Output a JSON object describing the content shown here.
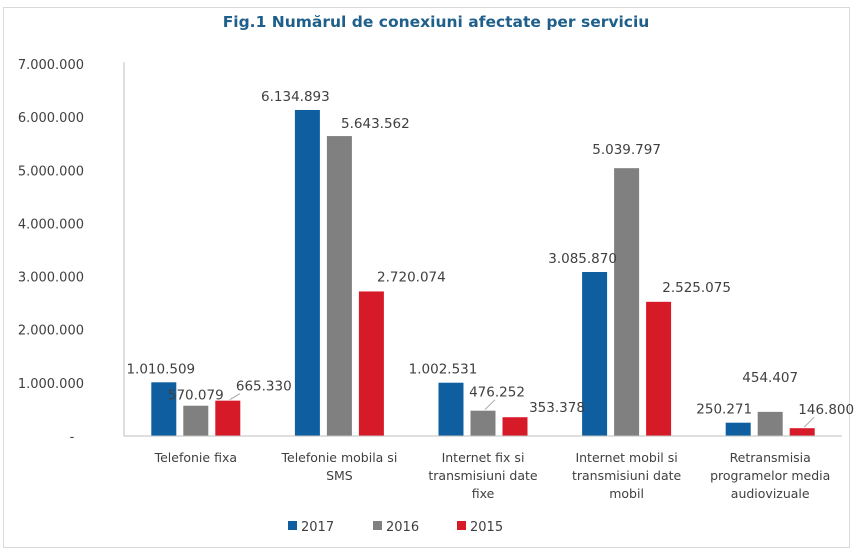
{
  "chart_data": {
    "type": "bar",
    "title": "Fig.1 Numărul de conexiuni afectate per serviciu",
    "xlabel": "",
    "ylabel": "",
    "ylim": [
      0,
      7000000
    ],
    "yticks": [
      0,
      1000000,
      2000000,
      3000000,
      4000000,
      5000000,
      6000000,
      7000000
    ],
    "ytick_labels": [
      "-",
      "1.000.000",
      "2.000.000",
      "3.000.000",
      "4.000.000",
      "5.000.000",
      "6.000.000",
      "7.000.000"
    ],
    "grid": false,
    "legend_position": "bottom",
    "categories": [
      [
        "Telefonie fixa"
      ],
      [
        "Telefonie mobila si",
        "SMS"
      ],
      [
        "Internet fix si",
        "transmisiuni date",
        "fixe"
      ],
      [
        "Internet mobil si",
        "transmisiuni date",
        "mobil"
      ],
      [
        "Retransmisia",
        "programelor media",
        "audiovizuale"
      ]
    ],
    "series": [
      {
        "name": "2017",
        "color": "#0f5fa0",
        "values": [
          1010509,
          6134893,
          1002531,
          3085870,
          250271
        ],
        "labels": [
          "1.010.509",
          "6.134.893",
          "1.002.531",
          "3.085.870",
          "250.271"
        ]
      },
      {
        "name": "2016",
        "color": "#808080",
        "values": [
          570079,
          5643562,
          476252,
          5039797,
          454407
        ],
        "labels": [
          "570.079",
          "5.643.562",
          "476.252",
          "5.039.797",
          "454.407"
        ]
      },
      {
        "name": "2015",
        "color": "#d71a28",
        "values": [
          665330,
          2720074,
          353378,
          2525075,
          146800
        ],
        "labels": [
          "665.330",
          "2.720.074",
          "353.378",
          "2.525.075",
          "146.800"
        ]
      }
    ]
  }
}
